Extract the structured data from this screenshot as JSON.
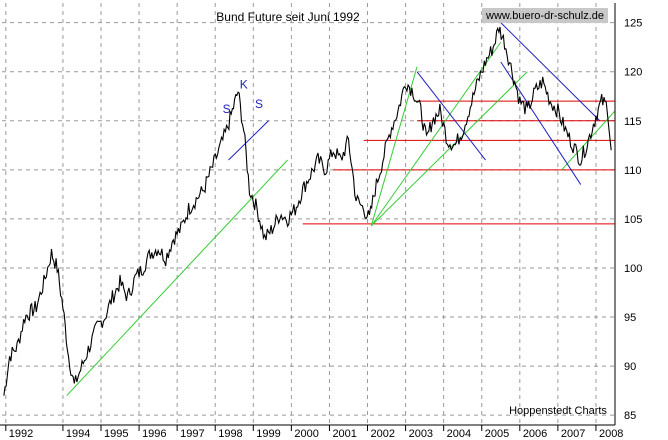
{
  "chart_data": {
    "type": "line",
    "title": "Bund Future seit Juni 1992",
    "source_label": "www.buero-dr-schulz.de",
    "credit": "Hoppenstedt Charts",
    "x_tick_labels": [
      "1992",
      "1994",
      "1995",
      "1996",
      "1997",
      "1998",
      "1999",
      "2000",
      "2001",
      "2002",
      "2003",
      "2004",
      "2005",
      "2006",
      "2007",
      "2008"
    ],
    "x_tick_years": [
      1992.5,
      1994,
      1995,
      1996,
      1997,
      1998,
      1999,
      2000,
      2001,
      2002,
      2003,
      2004,
      2005,
      2006,
      2007,
      2008
    ],
    "xlim": [
      1992.4,
      2008.5
    ],
    "y_ticks": [
      85,
      90,
      95,
      100,
      105,
      110,
      115,
      120,
      125
    ],
    "ylim": [
      84,
      127
    ],
    "grid": true,
    "series": [
      {
        "color": "#000000",
        "x": [
          1992.45,
          1992.6,
          1992.8,
          1993.0,
          1993.3,
          1993.5,
          1993.7,
          1993.85,
          1994.0,
          1994.15,
          1994.3,
          1994.5,
          1994.7,
          1994.9,
          1995.1,
          1995.3,
          1995.5,
          1995.7,
          1995.9,
          1996.1,
          1996.3,
          1996.5,
          1996.7,
          1996.9,
          1997.1,
          1997.3,
          1997.5,
          1997.7,
          1997.9,
          1998.1,
          1998.3,
          1998.45,
          1998.6,
          1998.75,
          1998.9,
          1999.1,
          1999.3,
          1999.5,
          1999.7,
          1999.9,
          2000.1,
          2000.3,
          2000.5,
          2000.7,
          2000.9,
          2001.1,
          2001.3,
          2001.5,
          2001.7,
          2001.9,
          2002.05,
          2002.2,
          2002.4,
          2002.6,
          2002.8,
          2003.0,
          2003.2,
          2003.4,
          2003.55,
          2003.7,
          2003.9,
          2004.1,
          2004.3,
          2004.5,
          2004.7,
          2004.9,
          2005.1,
          2005.3,
          2005.45,
          2005.6,
          2005.8,
          2006.0,
          2006.2,
          2006.4,
          2006.6,
          2006.8,
          2007.0,
          2007.2,
          2007.4,
          2007.6,
          2007.8,
          2008.0,
          2008.15,
          2008.3,
          2008.4
        ],
        "values": [
          87.0,
          91,
          92,
          95,
          96,
          98.5,
          101.5,
          100,
          96,
          91,
          88,
          90,
          92,
          94,
          95,
          97,
          98.5,
          97,
          99,
          100,
          101.5,
          102,
          101,
          103,
          104,
          106,
          107,
          108,
          110,
          112,
          114,
          116,
          118,
          114,
          108,
          106,
          103,
          104,
          105.5,
          105,
          106,
          108,
          109.5,
          111,
          110,
          112,
          111,
          113,
          107,
          106,
          105,
          108,
          111,
          114,
          116,
          119,
          118,
          116,
          113,
          115,
          116,
          113,
          112.5,
          114,
          116.5,
          119,
          121,
          122.5,
          124.5,
          123,
          120,
          117,
          116,
          118,
          119,
          117,
          116,
          114,
          112.5,
          111,
          113,
          115.5,
          117,
          116.5,
          112
        ]
      }
    ],
    "overlays": {
      "red_lines": [
        104.5,
        110,
        113,
        115,
        117
      ],
      "annotation_labels": [
        "S",
        "K",
        "S"
      ]
    }
  }
}
